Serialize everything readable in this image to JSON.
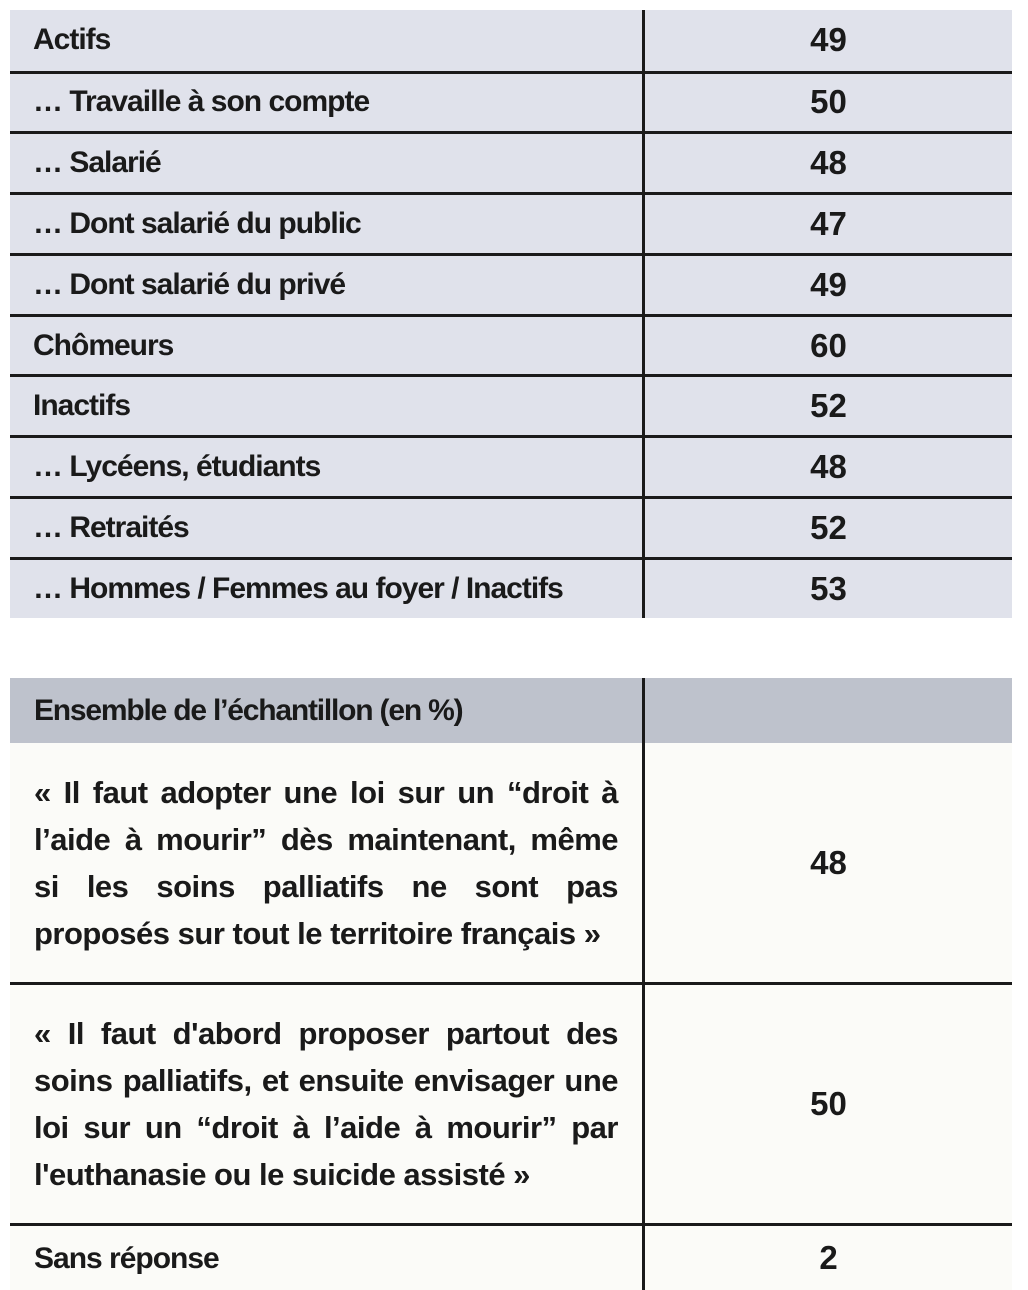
{
  "colors": {
    "page_bg": "#ffffff",
    "row_bg": "#e0e2eb",
    "header_bg": "#bec2cc",
    "body_bg": "#fbfbf8",
    "border": "#1a1a1a",
    "text": "#1a1a1a"
  },
  "demographics_table": {
    "rows": [
      {
        "label": "Actifs",
        "value": "49"
      },
      {
        "label": "… Travaille à son compte",
        "value": "50"
      },
      {
        "label": "… Salarié",
        "value": "48"
      },
      {
        "label": "… Dont salarié du public",
        "value": "47"
      },
      {
        "label": "… Dont salarié du privé",
        "value": "49"
      },
      {
        "label": "Chômeurs",
        "value": "60"
      },
      {
        "label": "Inactifs",
        "value": "52"
      },
      {
        "label": "… Lycéens, étudiants",
        "value": "48"
      },
      {
        "label": "… Retraités",
        "value": "52"
      },
      {
        "label": "… Hommes / Femmes au foyer / Inactifs",
        "value": "53"
      }
    ]
  },
  "question_table": {
    "header": "Ensemble de l’échantillon (en %)",
    "rows": [
      {
        "label": "« Il faut adopter une loi sur un “droit à l’aide à mourir” dès maintenant, même si les soins palliatifs ne sont pas proposés sur tout le territoire français »",
        "value": "48"
      },
      {
        "label": "« Il faut d'abord proposer partout des soins palliatifs, et ensuite envisager une loi sur un “droit à l’aide à mourir” par l'euthanasie ou le suicide assisté »",
        "value": "50"
      },
      {
        "label": "Sans réponse",
        "value": "2"
      }
    ]
  }
}
